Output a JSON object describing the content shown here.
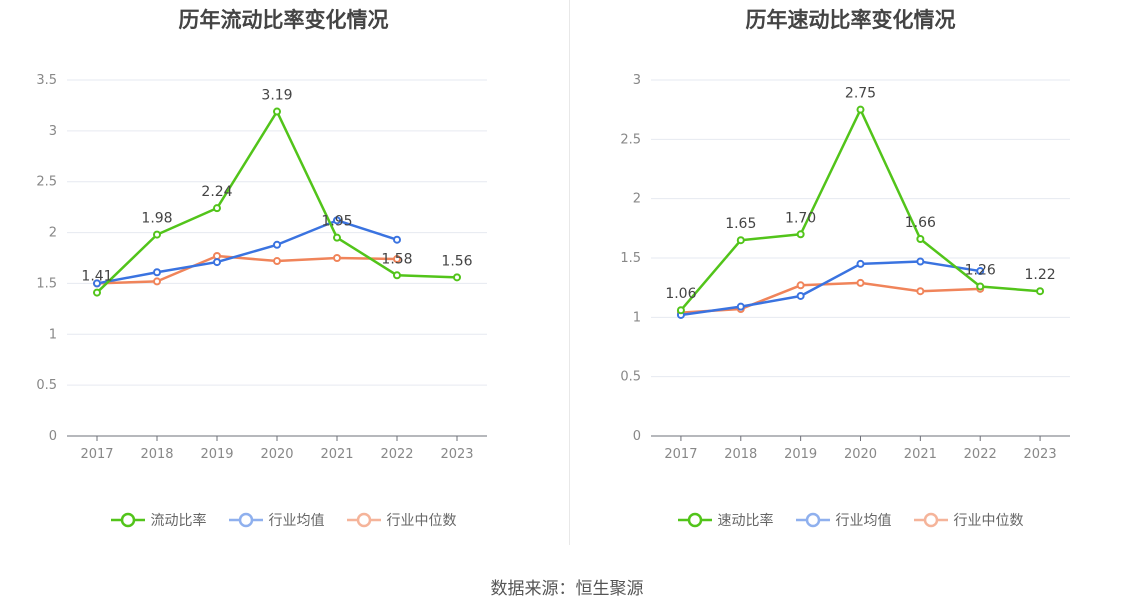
{
  "source_text": "数据来源：恒生聚源",
  "chart_data": [
    {
      "type": "line",
      "title": "历年流动比率变化情况",
      "categories": [
        "2017",
        "2018",
        "2019",
        "2020",
        "2021",
        "2022",
        "2023"
      ],
      "ylim": [
        0,
        3.5
      ],
      "yticks": [
        "0",
        "0.5",
        "1",
        "1.5",
        "2",
        "2.5",
        "3",
        "3.5"
      ],
      "ytick_values": [
        0,
        0.5,
        1,
        1.5,
        2,
        2.5,
        3,
        3.5
      ],
      "grid": true,
      "legend_position": "bottom",
      "series": [
        {
          "name": "流动比率",
          "color": "#52c41a",
          "values": [
            1.41,
            1.98,
            2.24,
            3.19,
            1.95,
            1.58,
            1.56
          ],
          "labels": [
            "1.41",
            "1.98",
            "2.24",
            "3.19",
            "1.95",
            "1.58",
            "1.56"
          ]
        },
        {
          "name": "行业均值",
          "color": "#3a73e0",
          "values": [
            1.5,
            1.61,
            1.71,
            1.88,
            2.12,
            1.93,
            null
          ]
        },
        {
          "name": "行业中位数",
          "color": "#f0845a",
          "values": [
            1.5,
            1.52,
            1.77,
            1.72,
            1.75,
            1.74,
            null
          ]
        }
      ]
    },
    {
      "type": "line",
      "title": "历年速动比率变化情况",
      "categories": [
        "2017",
        "2018",
        "2019",
        "2020",
        "2021",
        "2022",
        "2023"
      ],
      "ylim": [
        0,
        3
      ],
      "yticks": [
        "0",
        "0.5",
        "1",
        "1.5",
        "2",
        "2.5",
        "3"
      ],
      "ytick_values": [
        0,
        0.5,
        1,
        1.5,
        2,
        2.5,
        3
      ],
      "grid": true,
      "legend_position": "bottom",
      "series": [
        {
          "name": "速动比率",
          "color": "#52c41a",
          "values": [
            1.06,
            1.65,
            1.7,
            2.75,
            1.66,
            1.26,
            1.22
          ],
          "labels": [
            "1.06",
            "1.65",
            "1.70",
            "2.75",
            "1.66",
            "1.26",
            "1.22"
          ]
        },
        {
          "name": "行业均值",
          "color": "#3a73e0",
          "values": [
            1.02,
            1.09,
            1.18,
            1.45,
            1.47,
            1.39,
            null
          ]
        },
        {
          "name": "行业中位数",
          "color": "#f0845a",
          "values": [
            1.04,
            1.07,
            1.27,
            1.29,
            1.22,
            1.24,
            null
          ]
        }
      ]
    }
  ]
}
